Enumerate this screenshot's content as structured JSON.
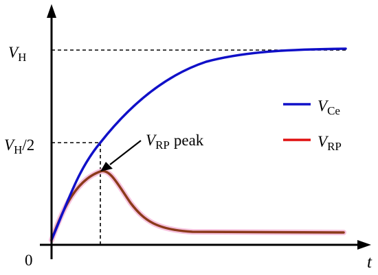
{
  "labels": {
    "y_high_var": "V",
    "y_high_sub": "H",
    "y_half_var": "V",
    "y_half_sub": "H",
    "y_half_suffix": "/2",
    "origin": "0",
    "x_axis": "t",
    "peak_var": "V",
    "peak_sub": "RP",
    "peak_suffix": "peak"
  },
  "legend": {
    "items": [
      {
        "var": "V",
        "sub": "Ce",
        "color": "#1010c8"
      },
      {
        "var": "V",
        "sub": "RP",
        "color": "#e01010"
      }
    ]
  },
  "curves": {
    "vce_color": "#1010c8",
    "vrp_color": "#8b3a1a",
    "vrp_glow_color": "#f4b7d8"
  }
}
